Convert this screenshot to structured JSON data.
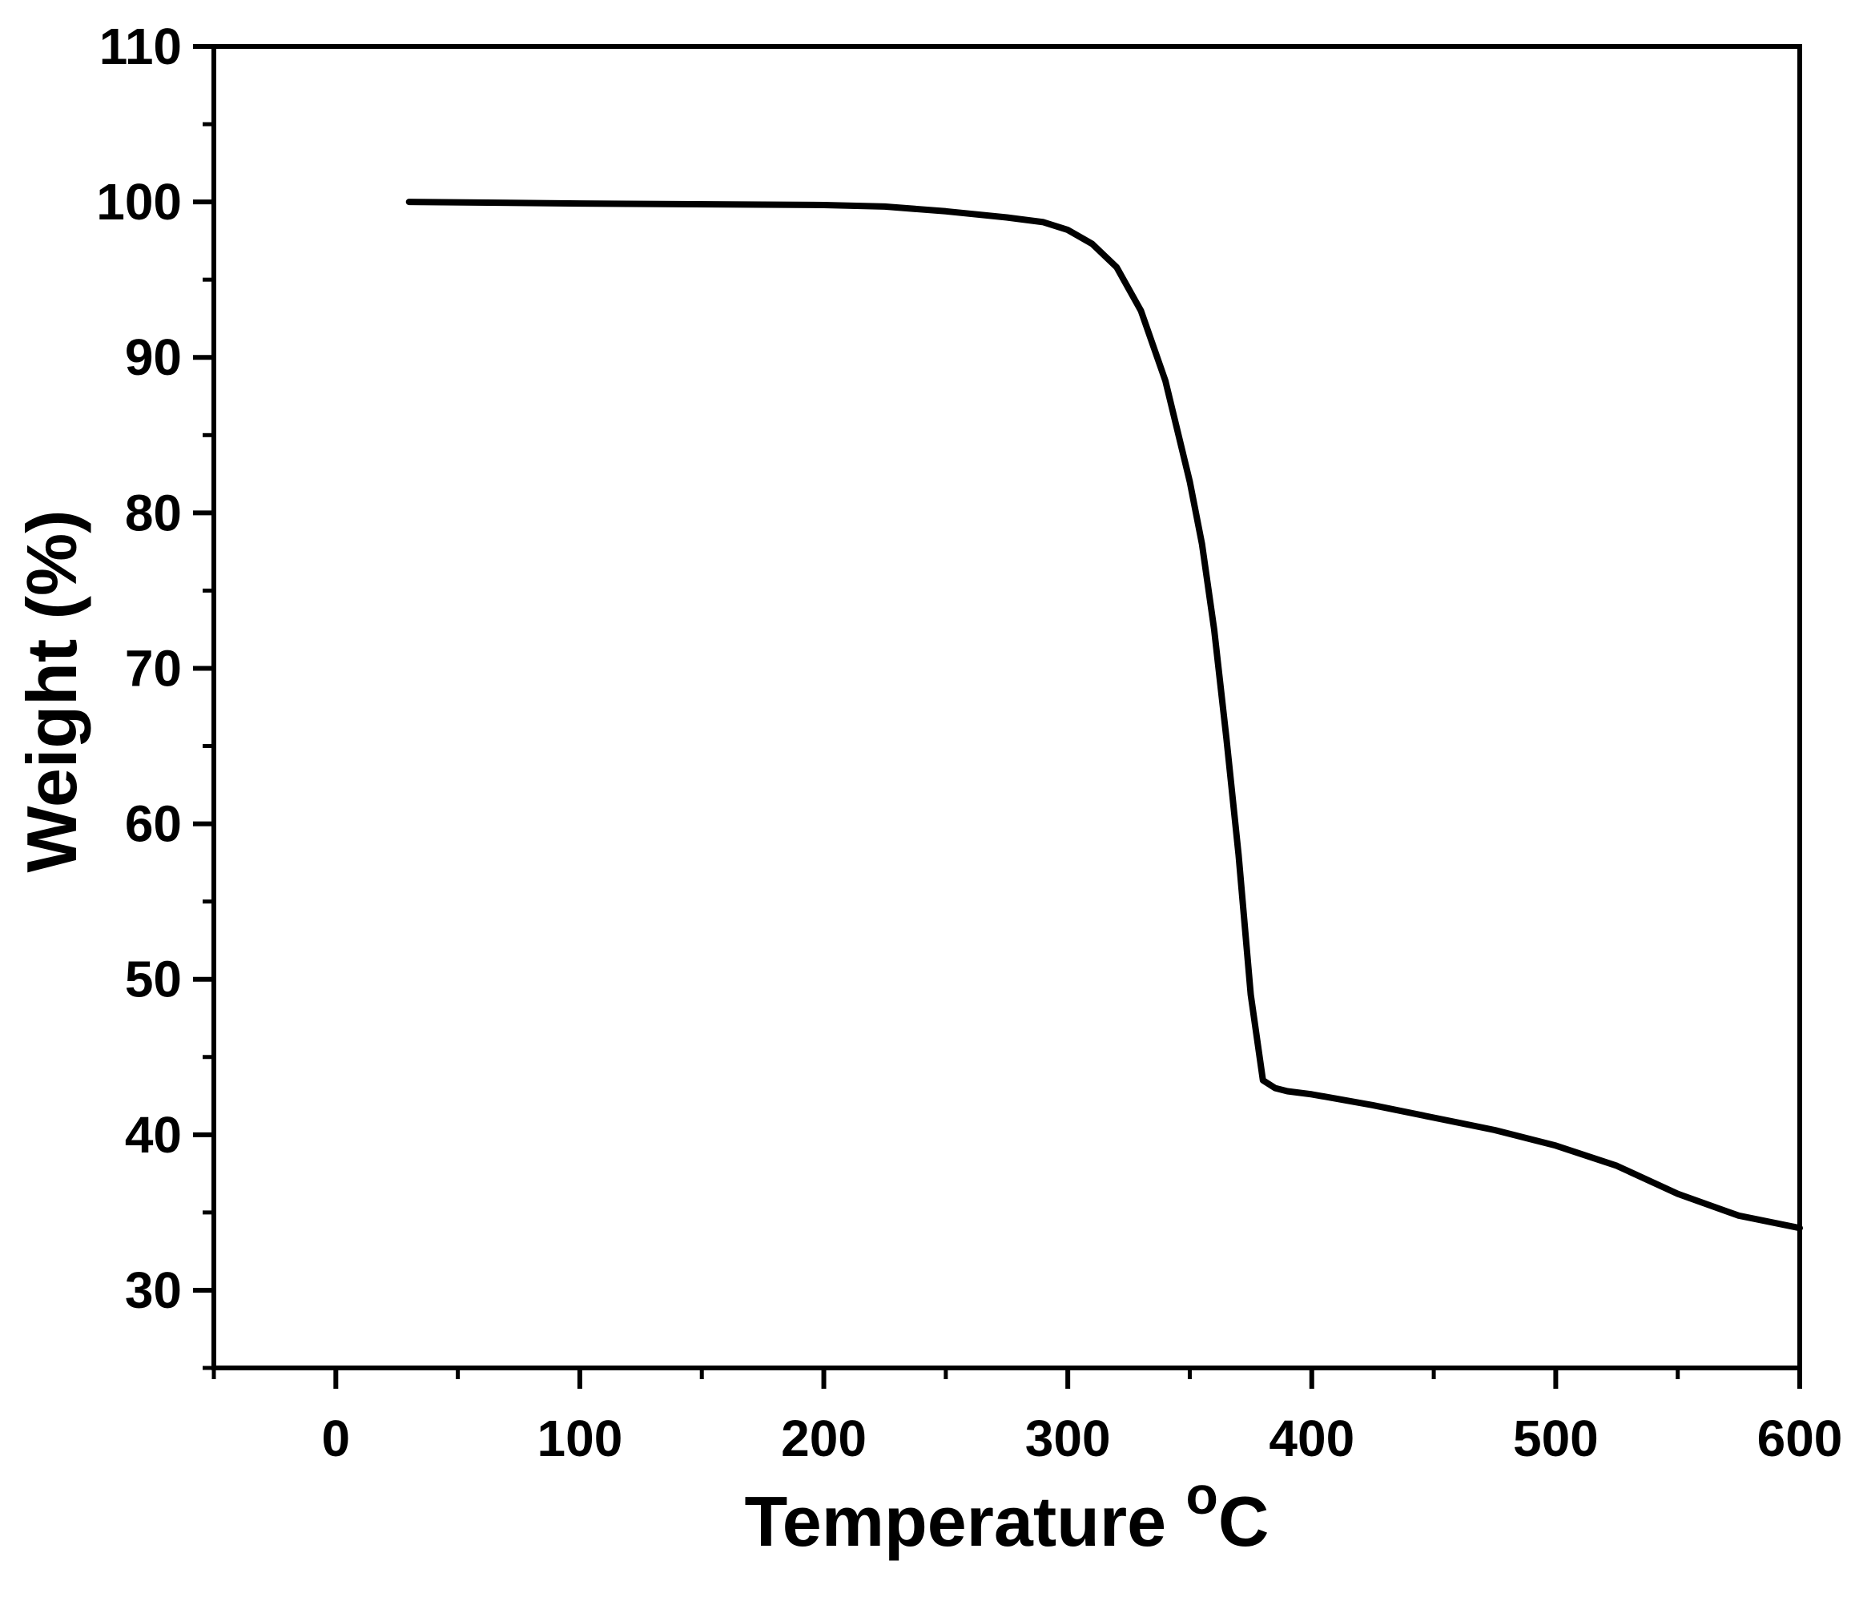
{
  "chart_data": {
    "type": "line",
    "title": "",
    "xlabel": "Temperature ",
    "xlabel_superscript": "o",
    "xlabel_suffix": "C",
    "ylabel": "Weight (%)",
    "xlim": [
      -50,
      600
    ],
    "ylim": [
      25,
      110
    ],
    "x_ticks": [
      0,
      100,
      200,
      300,
      400,
      500,
      600
    ],
    "y_ticks": [
      30,
      40,
      50,
      60,
      70,
      80,
      90,
      100,
      110
    ],
    "x_minor_step": 50,
    "y_minor_step": 5,
    "grid": false,
    "line_color": "#000000",
    "series": [
      {
        "x": [
          30,
          100,
          200,
          225,
          250,
          275,
          290,
          300,
          310,
          320,
          330,
          340,
          350,
          355,
          360,
          365,
          370,
          375,
          380,
          385,
          390,
          400,
          425,
          450,
          475,
          500,
          525,
          550,
          575,
          600
        ],
        "y": [
          100,
          99.9,
          99.8,
          99.7,
          99.4,
          99.0,
          98.7,
          98.2,
          97.3,
          95.8,
          93.0,
          88.5,
          82.0,
          78.0,
          72.5,
          65.5,
          58.0,
          49.0,
          43.5,
          43.0,
          42.8,
          42.6,
          41.9,
          41.1,
          40.3,
          39.3,
          38.0,
          36.2,
          34.8,
          34.0
        ]
      }
    ]
  }
}
